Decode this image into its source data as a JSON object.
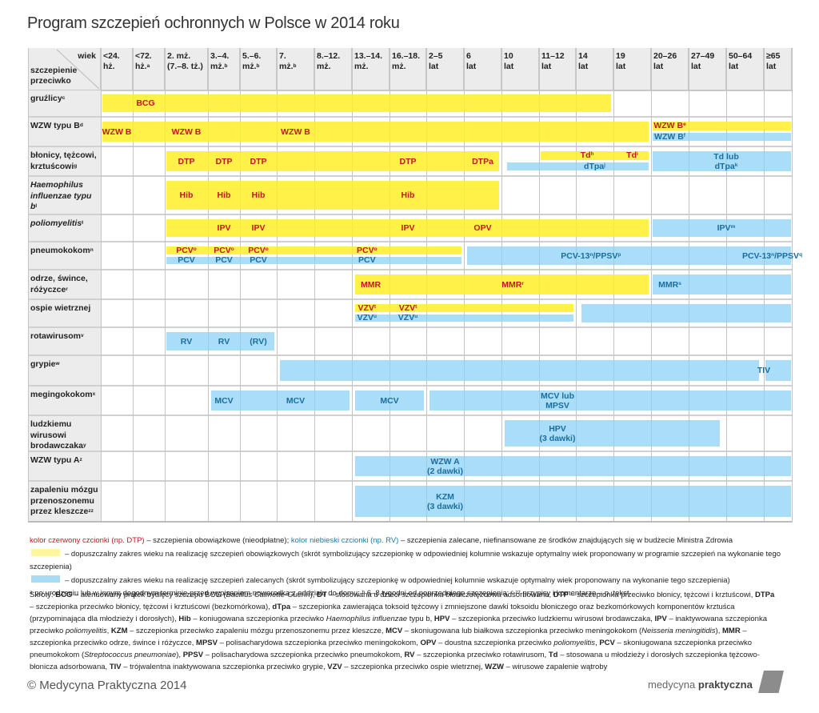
{
  "title": "Program szczepień ochronnych w Polsce w 2014 roku",
  "header": {
    "corner_top": "wiek",
    "corner_bottom": [
      "szczepienie",
      "przeciwko"
    ],
    "columns": [
      {
        "l1": "<24.",
        "l2": "hż.",
        "sup": ""
      },
      {
        "l1": "<72.",
        "l2": "hż.",
        "sup": "a"
      },
      {
        "l1": "2. mż.",
        "l2": "(7.–8. tż.)",
        "sup": ""
      },
      {
        "l1": "3.–4.",
        "l2": "mż.",
        "sup": "b"
      },
      {
        "l1": "5.–6.",
        "l2": "mż.",
        "sup": "b"
      },
      {
        "l1": "7.",
        "l2": "mż.",
        "sup": "b"
      },
      {
        "l1": "8.–12.",
        "l2": "mż.",
        "sup": ""
      },
      {
        "l1": "13.–14.",
        "l2": "mż.",
        "sup": ""
      },
      {
        "l1": "16.–18.",
        "l2": "mż.",
        "sup": ""
      },
      {
        "l1": "2–5",
        "l2": "lat",
        "sup": ""
      },
      {
        "l1": "6",
        "l2": "lat",
        "sup": ""
      },
      {
        "l1": "10",
        "l2": "lat",
        "sup": ""
      },
      {
        "l1": "11–12",
        "l2": "lat",
        "sup": ""
      },
      {
        "l1": "14",
        "l2": "lat",
        "sup": ""
      },
      {
        "l1": "19",
        "l2": "lat",
        "sup": ""
      },
      {
        "l1": "20–26",
        "l2": "lat",
        "sup": ""
      },
      {
        "l1": "27–49",
        "l2": "lat",
        "sup": ""
      },
      {
        "l1": "50–64",
        "l2": "lat",
        "sup": ""
      },
      {
        "l1": "≥65",
        "l2": "lat",
        "sup": ""
      }
    ]
  },
  "rows": [
    {
      "label": "gruźlicy",
      "sup": "c",
      "italic": false,
      "bars": [
        {
          "type": "mandatory",
          "from": 0,
          "to": 13.95,
          "lane": "full"
        }
      ],
      "labels": [
        {
          "text": "BCG",
          "sup": "",
          "col": 1.4,
          "lane": "full",
          "kind": "red"
        }
      ]
    },
    {
      "label": "WZW typu B",
      "sup": "d",
      "italic": false,
      "bars": [
        {
          "type": "mandatory",
          "from": 0,
          "to": 14.95,
          "lane": "full"
        },
        {
          "type": "mandatory",
          "from": 15,
          "to": 19,
          "lane": "top"
        },
        {
          "type": "recommended",
          "from": 15,
          "to": 19,
          "lane": "bottom"
        }
      ],
      "labels": [
        {
          "text": "WZW B",
          "sup": "",
          "col": 0.5,
          "lane": "full",
          "kind": "red"
        },
        {
          "text": "WZW B",
          "sup": "",
          "col": 2.5,
          "lane": "full",
          "kind": "red"
        },
        {
          "text": "WZW B",
          "sup": "",
          "col": 5.5,
          "lane": "full",
          "kind": "red"
        },
        {
          "text": "WZW B",
          "sup": "e",
          "col": 15.5,
          "lane": "top",
          "kind": "red"
        },
        {
          "text": "WZW B",
          "sup": "f",
          "col": 15.5,
          "lane": "bottom",
          "kind": "blue"
        }
      ]
    },
    {
      "label": "błonicy, tężcowi, krztuścowi",
      "sup": "g",
      "italic": false,
      "bars": [
        {
          "type": "mandatory",
          "from": 2,
          "to": 10.95,
          "lane": "full"
        },
        {
          "type": "mandatory",
          "from": 12,
          "to": 14.95,
          "lane": "top"
        },
        {
          "type": "recommended",
          "from": 11.1,
          "to": 14.95,
          "lane": "bottom"
        },
        {
          "type": "recommended",
          "from": 15,
          "to": 19,
          "lane": "full"
        }
      ],
      "labels": [
        {
          "text": "DTP",
          "sup": "",
          "col": 2.5,
          "lane": "full",
          "kind": "red"
        },
        {
          "text": "DTP",
          "sup": "",
          "col": 3.5,
          "lane": "full",
          "kind": "red"
        },
        {
          "text": "DTP",
          "sup": "",
          "col": 4.5,
          "lane": "full",
          "kind": "red"
        },
        {
          "text": "DTP",
          "sup": "",
          "col": 8.5,
          "lane": "full",
          "kind": "red"
        },
        {
          "text": "DTPa",
          "sup": "",
          "col": 10.5,
          "lane": "full",
          "kind": "red"
        },
        {
          "text": "Td",
          "sup": "h",
          "col": 13.3,
          "lane": "top",
          "kind": "red"
        },
        {
          "text": "Td",
          "sup": "i",
          "col": 14.5,
          "lane": "top",
          "kind": "red"
        },
        {
          "text": "dTpa",
          "sup": "j",
          "col": 13.5,
          "lane": "bottom",
          "kind": "blue"
        },
        {
          "text": "Td lub\ndTpa",
          "sup": "k",
          "col": 17,
          "lane": "full",
          "kind": "blue"
        }
      ]
    },
    {
      "label": "Haemophilus influenzae typu b",
      "sup": "l",
      "italic": true,
      "bars": [
        {
          "type": "mandatory",
          "from": 2,
          "to": 10.95,
          "lane": "full"
        }
      ],
      "labels": [
        {
          "text": "Hib",
          "sup": "",
          "col": 2.5,
          "lane": "full",
          "kind": "red"
        },
        {
          "text": "Hib",
          "sup": "",
          "col": 3.5,
          "lane": "full",
          "kind": "red"
        },
        {
          "text": "Hib",
          "sup": "",
          "col": 4.5,
          "lane": "full",
          "kind": "red"
        },
        {
          "text": "Hib",
          "sup": "",
          "col": 8.5,
          "lane": "full",
          "kind": "red"
        }
      ]
    },
    {
      "label": "poliomyelitis",
      "sup": "ł",
      "italic": true,
      "bars": [
        {
          "type": "mandatory",
          "from": 2,
          "to": 14.95,
          "lane": "full"
        },
        {
          "type": "recommended",
          "from": 15,
          "to": 19,
          "lane": "full"
        }
      ],
      "labels": [
        {
          "text": "IPV",
          "sup": "",
          "col": 3.5,
          "lane": "full",
          "kind": "red"
        },
        {
          "text": "IPV",
          "sup": "",
          "col": 4.5,
          "lane": "full",
          "kind": "red"
        },
        {
          "text": "IPV",
          "sup": "",
          "col": 8.5,
          "lane": "full",
          "kind": "red"
        },
        {
          "text": "OPV",
          "sup": "",
          "col": 10.5,
          "lane": "full",
          "kind": "red"
        },
        {
          "text": "IPV",
          "sup": "m",
          "col": 17,
          "lane": "full",
          "kind": "blue"
        }
      ]
    },
    {
      "label": "pneumokokom",
      "sup": "n",
      "italic": false,
      "bars": [
        {
          "type": "mandatory",
          "from": 2,
          "to": 9.95,
          "lane": "top"
        },
        {
          "type": "recommended",
          "from": 2,
          "to": 9.95,
          "lane": "bottom"
        },
        {
          "type": "recommended",
          "from": 10.05,
          "to": 19,
          "lane": "full"
        }
      ],
      "labels": [
        {
          "text": "PCV",
          "sup": "o",
          "col": 2.5,
          "lane": "top",
          "kind": "red"
        },
        {
          "text": "PCV",
          "sup": "o",
          "col": 3.5,
          "lane": "top",
          "kind": "red"
        },
        {
          "text": "PCV",
          "sup": "o",
          "col": 4.5,
          "lane": "top",
          "kind": "red"
        },
        {
          "text": "PCV",
          "sup": "o",
          "col": 7.4,
          "lane": "top",
          "kind": "red"
        },
        {
          "text": "PCV",
          "sup": "",
          "col": 2.5,
          "lane": "bottom",
          "kind": "blue"
        },
        {
          "text": "PCV",
          "sup": "",
          "col": 3.5,
          "lane": "bottom",
          "kind": "blue"
        },
        {
          "text": "PCV",
          "sup": "",
          "col": 4.5,
          "lane": "bottom",
          "kind": "blue"
        },
        {
          "text": "PCV",
          "sup": "",
          "col": 7.4,
          "lane": "bottom",
          "kind": "blue"
        },
        {
          "text": "PCV-13",
          "sup": "n",
          "text2": "/PPSV",
          "sup2": "p",
          "col": 13.4,
          "lane": "full",
          "kind": "blue"
        },
        {
          "text": "PCV-13",
          "sup": "n",
          "text2": "/PPSV",
          "sup2": "q",
          "col": 18.3,
          "lane": "full",
          "kind": "blue"
        }
      ]
    },
    {
      "label": "odrze, śwince, różyczce",
      "sup": "r",
      "italic": false,
      "bars": [
        {
          "type": "mandatory",
          "from": 7.05,
          "to": 14.95,
          "lane": "full"
        },
        {
          "type": "recommended",
          "from": 15,
          "to": 19,
          "lane": "full"
        }
      ],
      "labels": [
        {
          "text": "MMR",
          "sup": "",
          "col": 7.5,
          "lane": "full",
          "kind": "red"
        },
        {
          "text": "MMR",
          "sup": "r",
          "col": 11.3,
          "lane": "full",
          "kind": "red"
        },
        {
          "text": "MMR",
          "sup": "s",
          "col": 15.5,
          "lane": "full",
          "kind": "blue"
        }
      ]
    },
    {
      "label": "ospie wietrznej",
      "sup": "",
      "italic": false,
      "bars": [
        {
          "type": "mandatory",
          "from": 7.05,
          "to": 12.95,
          "lane": "top"
        },
        {
          "type": "recommended",
          "from": 7.05,
          "to": 12.95,
          "lane": "bottom"
        },
        {
          "type": "recommended",
          "from": 13.1,
          "to": 19,
          "lane": "full"
        }
      ],
      "labels": [
        {
          "text": "VZV",
          "sup": "t",
          "col": 7.4,
          "lane": "top",
          "kind": "red"
        },
        {
          "text": "VZV",
          "sup": "t",
          "col": 8.5,
          "lane": "top",
          "kind": "red"
        },
        {
          "text": "VZV",
          "sup": "u",
          "col": 7.4,
          "lane": "bottom",
          "kind": "blue"
        },
        {
          "text": "VZV",
          "sup": "u",
          "col": 8.5,
          "lane": "bottom",
          "kind": "blue"
        }
      ]
    },
    {
      "label": "rotawirusom",
      "sup": "v",
      "italic": false,
      "bars": [
        {
          "type": "recommended",
          "from": 2,
          "to": 4.95,
          "lane": "full"
        }
      ],
      "labels": [
        {
          "text": "RV",
          "sup": "",
          "col": 2.5,
          "lane": "full",
          "kind": "blue"
        },
        {
          "text": "RV",
          "sup": "",
          "col": 3.5,
          "lane": "full",
          "kind": "blue"
        },
        {
          "text": "(RV)",
          "sup": "",
          "col": 4.5,
          "lane": "full",
          "kind": "blue"
        }
      ]
    },
    {
      "label": "grypie",
      "sup": "w",
      "italic": false,
      "bars": [
        {
          "type": "recommended",
          "from": 5.05,
          "to": 17.9,
          "lane": "full"
        },
        {
          "type": "recommended",
          "from": 18,
          "to": 19,
          "lane": "full"
        }
      ],
      "labels": [
        {
          "text": "TIV",
          "sup": "",
          "col": 18,
          "lane": "full",
          "kind": "blue"
        }
      ]
    },
    {
      "label": "megingokokom",
      "sup": "x",
      "italic": false,
      "bars": [
        {
          "type": "recommended",
          "from": 3.05,
          "to": 6.95,
          "lane": "full"
        },
        {
          "type": "recommended",
          "from": 7.05,
          "to": 8.95,
          "lane": "full"
        },
        {
          "type": "recommended",
          "from": 9.05,
          "to": 19,
          "lane": "full"
        }
      ],
      "labels": [
        {
          "text": "MCV",
          "sup": "",
          "col": 3.5,
          "lane": "full",
          "kind": "blue"
        },
        {
          "text": "MCV",
          "sup": "",
          "col": 5.5,
          "lane": "full",
          "kind": "blue"
        },
        {
          "text": "MCV",
          "sup": "",
          "col": 8,
          "lane": "full",
          "kind": "blue"
        },
        {
          "text": "MCV lub\nMPSV",
          "sup": "",
          "col": 12.5,
          "lane": "full",
          "kind": "blue"
        }
      ]
    },
    {
      "label": "ludzkiemu wirusowi brodawczaka",
      "sup": "y",
      "italic": false,
      "bars": [
        {
          "type": "recommended",
          "from": 11.05,
          "to": 16.85,
          "lane": "full"
        }
      ],
      "labels": [
        {
          "text": "HPV\n(3 dawki)",
          "sup": "",
          "col": 12.5,
          "lane": "full",
          "kind": "blue"
        }
      ]
    },
    {
      "label": "WZW typu A",
      "sup": "z",
      "italic": false,
      "bars": [
        {
          "type": "recommended",
          "from": 7.05,
          "to": 19,
          "lane": "full"
        }
      ],
      "labels": [
        {
          "text": "WZW A\n(2 dawki)",
          "sup": "",
          "col": 9.5,
          "lane": "full",
          "kind": "blue"
        }
      ]
    },
    {
      "label": "zapaleniu mózgu przenoszonemu przez kleszcze",
      "sup": "zz",
      "italic": false,
      "bars": [
        {
          "type": "recommended",
          "from": 7.05,
          "to": 19,
          "lane": "full"
        }
      ],
      "labels": [
        {
          "text": "KZM\n(3 dawki)",
          "sup": "",
          "col": 9.5,
          "lane": "full",
          "kind": "blue"
        }
      ]
    }
  ],
  "colors": {
    "mandatory_text": "#c0181f",
    "recommended_text": "#1a6e9e",
    "mandatory_fill": "#fff04a",
    "recommended_fill": "#a8dcf5"
  },
  "legend": {
    "red_sample": "kolor czerwony czcionki (np. DTP)",
    "red_desc": " – szczepienia obowiązkowe (nieodpłatne); ",
    "blue_sample": "kolor niebieski czcionki (np. RV)",
    "blue_desc": " – szczepienia zalecane, niefinansowane ze środków znajdujących się w budżecie Ministra Zdrowia",
    "yellow_desc": "– dopuszczalny zakres wieku na realizację szczepień obowiązkowych (skrót symbolizujący szczepionkę w odpowiedniej kolumnie wskazuje optymalny wiek proponowany w programie szczepień na wykonanie tego szczepienia)",
    "blue_swatch_desc": "– dopuszczalny zakres wieku na realizację szczepień zalecanych (skrót symbolizujący szczepionkę w odpowiedniej kolumnie wskazuje optymalny wiek proponowany na wykonanie tego szczepienia)",
    "footnote_a": "po urodzeniu lub w innym dogodnym terminie przed wypisaniem noworodka z oddziału do domu; ",
    "footnote_b": "6–8 tygodni od poprzedniego szczepienia; ",
    "footnote_c": "przypisy i komentarze – p. tekst"
  },
  "abbreviations_intro": "Skróty: ",
  "abbreviations": [
    {
      "term": "BCG",
      "def": "atenuowany prątek bydlęcy szczepu BCG (",
      "it": "Bacillus Calmette-Guerin",
      "after": "), "
    },
    {
      "term": "DT",
      "def": "stosowana u dzieci szczepionka błoniczotężcowa adsorbowana, ",
      "it": "",
      "after": ""
    },
    {
      "term": "DTP",
      "def": "szczepionka przeciwko błonicy, tężcowi i krztuścowi, ",
      "it": "",
      "after": ""
    },
    {
      "term": "DTPa",
      "def": "szczepionka przeciwko błonicy, tężcowi i krztuścowi (bezkomórkowa), ",
      "it": "",
      "after": ""
    },
    {
      "term": "dTpa",
      "def": "szczepionka zawierająca toksoid tężcowy i zmniejszone dawki toksoidu błoniczego oraz bezkomórkowych komponentów krztuśca (przypominająca dla młodzieży i dorosłych), ",
      "it": "",
      "after": ""
    },
    {
      "term": "Hib",
      "def": "koniugowana szczepionka przeciwko ",
      "it": "Haemophilus influenzae",
      "after": " typu b, "
    },
    {
      "term": "HPV",
      "def": "szczepionka przeciwko ludzkiemu wirusowi brodawczaka, ",
      "it": "",
      "after": ""
    },
    {
      "term": "IPV",
      "def": "inaktywowana szczepionka przeciwko ",
      "it": "poliomyelitis",
      "after": ", "
    },
    {
      "term": "KZM",
      "def": "szczepionka przeciwko zapaleniu mózgu przenoszonemu przez kleszcze, ",
      "it": "",
      "after": ""
    },
    {
      "term": "MCV",
      "def": "skoniugowana lub białkowa szczepionka przeciwko meningokokom (",
      "it": "Neisseria meningitidis",
      "after": "), "
    },
    {
      "term": "MMR",
      "def": "szczepionka przeciwko odrze, śwince i różyczce, ",
      "it": "",
      "after": ""
    },
    {
      "term": "MPSV",
      "def": "polisacharydowa szczepionka przeciwko meningokokom, ",
      "it": "",
      "after": ""
    },
    {
      "term": "OPV",
      "def": "doustna szczepionka przeciwko ",
      "it": "poliomyelitis",
      "after": ", "
    },
    {
      "term": "PCV",
      "def": "skoniugowana szczepionka przeciwko pneumokokom (",
      "it": "Streptococcus pneumoniae",
      "after": "), "
    },
    {
      "term": "PPSV",
      "def": "polisacharydowa szczepionka przeciwko pneumokokom, ",
      "it": "",
      "after": ""
    },
    {
      "term": "RV",
      "def": "szczepionka przeciwko rotawirusom, ",
      "it": "",
      "after": ""
    },
    {
      "term": "Td",
      "def": "stosowana u młodzieży i dorosłych szczepionka tężcowo-błonicza adsorbowana, ",
      "it": "",
      "after": ""
    },
    {
      "term": "TIV",
      "def": "trójwalentna inaktywowana szczepionka przeciwko grypie, ",
      "it": "",
      "after": ""
    },
    {
      "term": "VZV",
      "def": "szczepionka przeciwko ospie wietrznej, ",
      "it": "",
      "after": ""
    },
    {
      "term": "WZW",
      "def": "wirusowe zapalenie wątroby",
      "it": "",
      "after": ""
    }
  ],
  "footer": {
    "copyright": "© Medycyna Praktyczna 2014",
    "logo_light": "medycyna ",
    "logo_bold": "praktyczna"
  }
}
